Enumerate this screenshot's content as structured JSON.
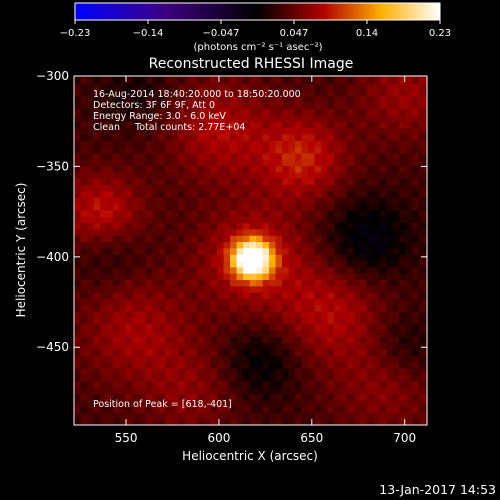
{
  "chart_data": {
    "type": "heatmap",
    "title": "Reconstructed RHESSI Image",
    "xlabel": "Heliocentric X (arcsec)",
    "ylabel": "Heliocentric Y (arcsec)",
    "xlim": [
      522,
      712
    ],
    "ylim": [
      -493,
      -300
    ],
    "x_ticks": [
      550,
      600,
      650,
      700
    ],
    "y_ticks": [
      -300,
      -350,
      -400,
      -450
    ],
    "colorbar": {
      "min": -0.23,
      "max": 0.23,
      "ticks": [
        "-0.23",
        "-0.14",
        "-0.047",
        "0.047",
        "0.14",
        "0.23"
      ],
      "units": "(photons cm⁻² s⁻¹ asec⁻²)"
    },
    "annotations": [
      "16-Aug-2014 18:40:20.000 to 18:50:20.000",
      "Detectors: 3F 6F 9F, Att 0",
      "Energy Range: 3.0 - 6.0 keV",
      "Clean     Total counts: 2.77E+04"
    ],
    "peak_label": "Position of Peak = [618,-401]",
    "peak": {
      "x": 618,
      "y": -401,
      "value": 0.23
    },
    "sources": [
      {
        "x": 618,
        "y": -401,
        "amp": 0.23,
        "sigma": 7
      },
      {
        "x": 618,
        "y": -401,
        "amp": 0.06,
        "sigma": 20
      },
      {
        "x": 537,
        "y": -377,
        "amp": 0.07,
        "sigma": 16
      },
      {
        "x": 645,
        "y": -345,
        "amp": 0.065,
        "sigma": 17
      },
      {
        "x": 600,
        "y": -330,
        "amp": 0.05,
        "sigma": 20
      },
      {
        "x": 700,
        "y": -310,
        "amp": 0.04,
        "sigma": 18
      },
      {
        "x": 555,
        "y": -440,
        "amp": 0.045,
        "sigma": 22
      },
      {
        "x": 660,
        "y": -430,
        "amp": 0.05,
        "sigma": 20
      },
      {
        "x": 690,
        "y": -470,
        "amp": 0.035,
        "sigma": 20
      },
      {
        "x": 585,
        "y": -475,
        "amp": 0.03,
        "sigma": 18
      },
      {
        "x": 540,
        "y": -395,
        "amp": -0.035,
        "sigma": 15
      },
      {
        "x": 680,
        "y": -390,
        "amp": -0.045,
        "sigma": 16
      },
      {
        "x": 623,
        "y": -458,
        "amp": -0.035,
        "sigma": 14
      },
      {
        "x": 700,
        "y": -450,
        "amp": -0.03,
        "sigma": 14
      },
      {
        "x": 555,
        "y": -310,
        "amp": -0.02,
        "sigma": 14
      }
    ]
  },
  "footer_date": "13-Jan-2017 14:53"
}
